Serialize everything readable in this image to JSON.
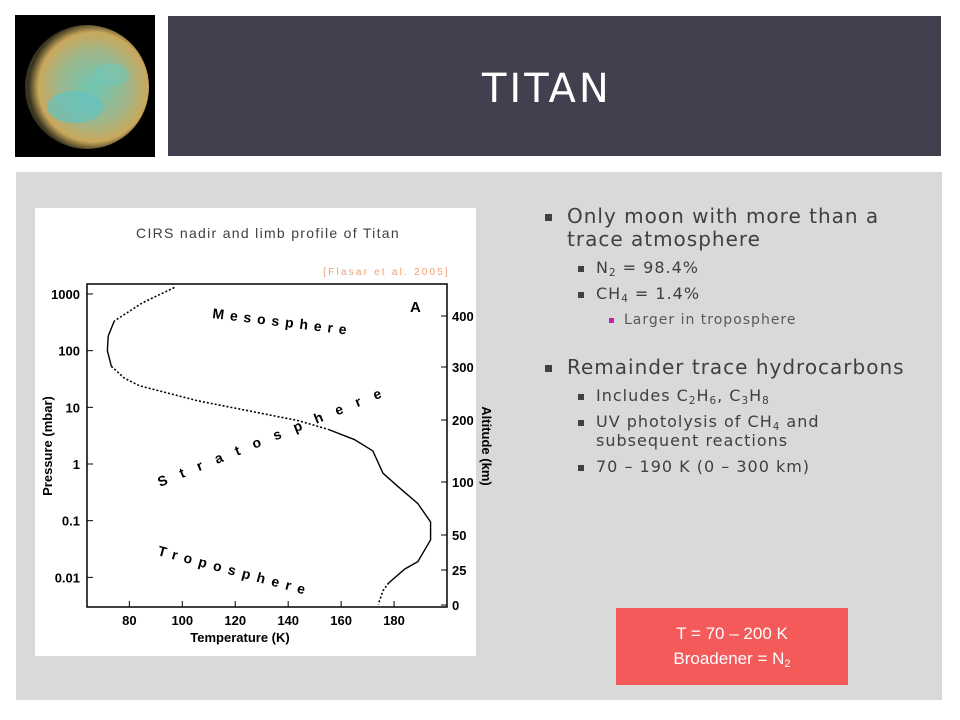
{
  "header": {
    "title": "TITAN"
  },
  "figure": {
    "title": "CIRS nadir and limb profile of Titan",
    "citation": "[Flasar et al. 2005]",
    "panel_label": "A",
    "region_labels": [
      "Mesosphere",
      "Stratosphere",
      "Troposphere"
    ],
    "xlabel": "Temperature (K)",
    "ylabel": "Pressure (mbar)",
    "y2label": "Altitude (km)",
    "xlim": [
      64,
      200
    ],
    "xticks": [
      80,
      100,
      120,
      140,
      160,
      180
    ],
    "ylim": [
      0.003,
      1500
    ],
    "yticks": [
      0.01,
      0.1,
      1,
      10,
      100,
      1000
    ],
    "log_y": true,
    "y2ticks": [
      0,
      25,
      50,
      100,
      200,
      300,
      400
    ],
    "curve": [
      {
        "style": "dotted",
        "x": [
          97,
          85,
          74.3
        ],
        "y": [
          1300,
          700,
          334
        ]
      },
      {
        "style": "solid",
        "x": [
          74.3,
          72,
          71.7,
          73.2
        ],
        "y": [
          334,
          180,
          100,
          53
        ]
      },
      {
        "style": "dotted",
        "x": [
          73.2,
          78,
          83.8,
          106,
          128.9,
          144,
          155
        ],
        "y": [
          53,
          33,
          24,
          13,
          8,
          5.8,
          4.1
        ]
      },
      {
        "style": "solid",
        "x": [
          155,
          165,
          172,
          175.8,
          181.5,
          189,
          193.8,
          193.8,
          189,
          184,
          178
        ],
        "y": [
          4.1,
          2.7,
          1.7,
          0.69,
          0.4,
          0.2,
          0.095,
          0.046,
          0.019,
          0.014,
          0.008
        ]
      },
      {
        "style": "dotted",
        "x": [
          178,
          175.8,
          174
        ],
        "y": [
          0.008,
          0.0058,
          0.0033
        ]
      }
    ]
  },
  "bullets": [
    {
      "level": 1,
      "text": [
        "Only moon with more than a trace atmosphere"
      ]
    },
    {
      "level": 2,
      "text": [
        "N",
        {
          "sub": "2"
        },
        " = 98.4%"
      ]
    },
    {
      "level": 2,
      "text": [
        "CH",
        {
          "sub": "4"
        },
        " = 1.4%"
      ]
    },
    {
      "level": 3,
      "text": [
        "Larger in troposphere"
      ]
    },
    {
      "level": 1,
      "text": [
        "Remainder trace hydrocarbons"
      ]
    },
    {
      "level": 2,
      "text": [
        "Includes C",
        {
          "sub": "2"
        },
        "H",
        {
          "sub": "6"
        },
        ", C",
        {
          "sub": "3"
        },
        "H",
        {
          "sub": "8"
        }
      ]
    },
    {
      "level": 2,
      "text": [
        "UV photolysis of CH",
        {
          "sub": "4"
        },
        " and subsequent reactions"
      ]
    },
    {
      "level": 2,
      "text": [
        "70 – 190 K (0 – 300 km)"
      ]
    }
  ],
  "box": {
    "lines": [
      [
        "T = 70 – 200 K"
      ],
      [
        "Broadener = N",
        {
          "sub": "2"
        }
      ]
    ]
  }
}
